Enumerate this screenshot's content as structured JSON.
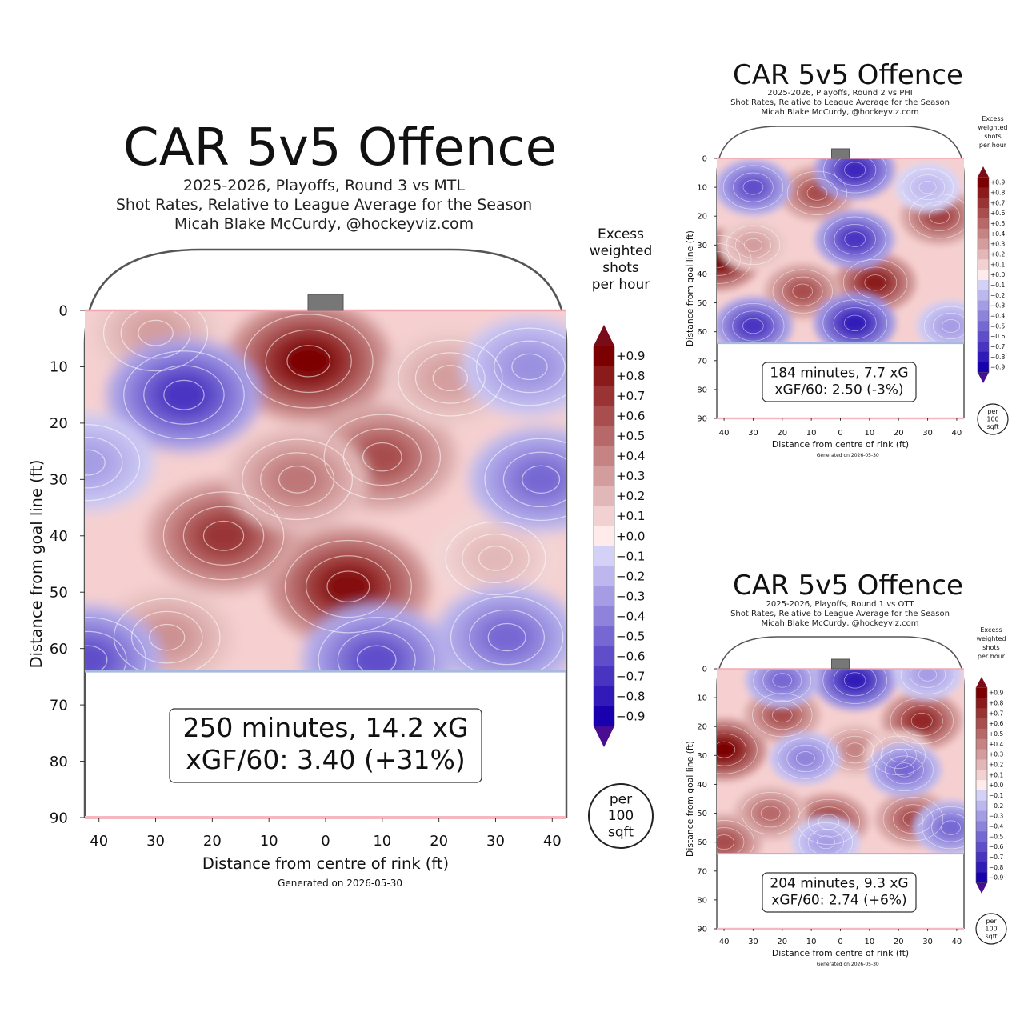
{
  "charts": [
    {
      "title": "CAR 5v5 Offence",
      "subtitle_lines": [
        "2025-2026, Playoffs, Round 3 vs MTL",
        "Shot Rates, Relative to League Average for the Season",
        "Micah Blake McCurdy, @hockeyviz.com"
      ],
      "summary_lines": [
        "250 minutes, 14.2 xG",
        "xGF/60: 3.40 (+31%)"
      ],
      "ylabel": "Distance from goal line (ft)",
      "xlabel": "Distance from centre of rink (ft)",
      "generated": "Generated on 2026-05-30",
      "legend_title": [
        "Excess",
        "weighted",
        "shots",
        "per hour"
      ],
      "unit_label": [
        "per",
        "100",
        "sqft"
      ]
    },
    {
      "title": "CAR 5v5 Offence",
      "subtitle_lines": [
        "2025-2026, Playoffs, Round 2 vs PHI",
        "Shot Rates, Relative to League Average for the Season",
        "Micah Blake McCurdy, @hockeyviz.com"
      ],
      "summary_lines": [
        "184 minutes, 7.7 xG",
        "xGF/60: 2.50 (-3%)"
      ],
      "ylabel": "Distance from goal line (ft)",
      "xlabel": "Distance from centre of rink (ft)",
      "generated": "Generated on 2026-05-30",
      "legend_title": [
        "Excess",
        "weighted",
        "shots",
        "per hour"
      ],
      "unit_label": [
        "per",
        "100",
        "sqft"
      ]
    },
    {
      "title": "CAR 5v5 Offence",
      "subtitle_lines": [
        "2025-2026, Playoffs, Round 1 vs OTT",
        "Shot Rates, Relative to League Average for the Season",
        "Micah Blake McCurdy, @hockeyviz.com"
      ],
      "summary_lines": [
        "204 minutes, 9.3 xG",
        "xGF/60: 2.74 (+6%)"
      ],
      "ylabel": "Distance from goal line (ft)",
      "xlabel": "Distance from centre of rink (ft)",
      "generated": "Generated on 2026-05-30",
      "legend_title": [
        "Excess",
        "weighted",
        "shots",
        "per hour"
      ],
      "unit_label": [
        "per",
        "100",
        "sqft"
      ]
    }
  ],
  "chart_data": [
    {
      "type": "heatmap",
      "x_ticks": [
        "40",
        "30",
        "20",
        "10",
        "0",
        "10",
        "20",
        "30",
        "40"
      ],
      "y_ticks": [
        "0",
        "10",
        "20",
        "30",
        "40",
        "50",
        "60",
        "70",
        "80",
        "90"
      ],
      "x_range": [
        -42.5,
        42.5
      ],
      "y_range": [
        0,
        90
      ],
      "colorbar_ticks": [
        "+0.9",
        "+0.8",
        "+0.7",
        "+0.6",
        "+0.5",
        "+0.4",
        "+0.3",
        "+0.2",
        "+0.1",
        "+0.0",
        "−0.1",
        "−0.2",
        "−0.3",
        "−0.4",
        "−0.5",
        "−0.6",
        "−0.7",
        "−0.8",
        "−0.9"
      ],
      "blobs": [
        {
          "x": -3,
          "y": 9,
          "value": 0.9
        },
        {
          "x": 10,
          "y": 26,
          "value": 0.6
        },
        {
          "x": 4,
          "y": 49,
          "value": 0.85
        },
        {
          "x": -18,
          "y": 40,
          "value": 0.7
        },
        {
          "x": -5,
          "y": 30,
          "value": 0.45
        },
        {
          "x": -30,
          "y": 4,
          "value": 0.3
        },
        {
          "x": -28,
          "y": 58,
          "value": 0.35
        },
        {
          "x": 30,
          "y": 44,
          "value": 0.2
        },
        {
          "x": 22,
          "y": 12,
          "value": 0.3
        },
        {
          "x": -25,
          "y": 15,
          "value": -0.7
        },
        {
          "x": 38,
          "y": 30,
          "value": -0.5
        },
        {
          "x": 32,
          "y": 58,
          "value": -0.5
        },
        {
          "x": -42,
          "y": 62,
          "value": -0.6
        },
        {
          "x": 9,
          "y": 62,
          "value": -0.6
        },
        {
          "x": -42,
          "y": 27,
          "value": -0.3
        },
        {
          "x": 36,
          "y": 10,
          "value": -0.35
        }
      ]
    },
    {
      "type": "heatmap",
      "x_ticks": [
        "40",
        "30",
        "20",
        "10",
        "0",
        "10",
        "20",
        "30",
        "40"
      ],
      "y_ticks": [
        "0",
        "10",
        "20",
        "30",
        "40",
        "50",
        "60",
        "70",
        "80",
        "90"
      ],
      "x_range": [
        -42.5,
        42.5
      ],
      "y_range": [
        0,
        90
      ],
      "colorbar_ticks": [
        "+0.9",
        "+0.8",
        "+0.7",
        "+0.6",
        "+0.5",
        "+0.4",
        "+0.3",
        "+0.2",
        "+0.1",
        "+0.0",
        "−0.1",
        "−0.2",
        "−0.3",
        "−0.4",
        "−0.5",
        "−0.6",
        "−0.7",
        "−0.8",
        "−0.9"
      ],
      "blobs": [
        {
          "x": -42,
          "y": 35,
          "value": 0.9
        },
        {
          "x": 12,
          "y": 43,
          "value": 0.8
        },
        {
          "x": -8,
          "y": 12,
          "value": 0.6
        },
        {
          "x": 34,
          "y": 20,
          "value": 0.65
        },
        {
          "x": -13,
          "y": 46,
          "value": 0.6
        },
        {
          "x": -30,
          "y": 30,
          "value": 0.3
        },
        {
          "x": 5,
          "y": 4,
          "value": -0.75
        },
        {
          "x": 5,
          "y": 28,
          "value": -0.7
        },
        {
          "x": -30,
          "y": 58,
          "value": -0.7
        },
        {
          "x": 5,
          "y": 57,
          "value": -0.8
        },
        {
          "x": -30,
          "y": 10,
          "value": -0.6
        },
        {
          "x": 30,
          "y": 10,
          "value": -0.2
        },
        {
          "x": 38,
          "y": 58,
          "value": -0.3
        }
      ]
    },
    {
      "type": "heatmap",
      "x_ticks": [
        "40",
        "30",
        "20",
        "10",
        "0",
        "10",
        "20",
        "30",
        "40"
      ],
      "y_ticks": [
        "0",
        "10",
        "20",
        "30",
        "40",
        "50",
        "60",
        "70",
        "80",
        "90"
      ],
      "x_range": [
        -42.5,
        42.5
      ],
      "y_range": [
        0,
        90
      ],
      "colorbar_ticks": [
        "+0.9",
        "+0.8",
        "+0.7",
        "+0.6",
        "+0.5",
        "+0.4",
        "+0.3",
        "+0.2",
        "+0.1",
        "+0.0",
        "−0.1",
        "−0.2",
        "−0.3",
        "−0.4",
        "−0.5",
        "−0.6",
        "−0.7",
        "−0.8",
        "−0.9"
      ],
      "blobs": [
        {
          "x": -40,
          "y": 28,
          "value": 0.9
        },
        {
          "x": -20,
          "y": 16,
          "value": 0.6
        },
        {
          "x": 28,
          "y": 18,
          "value": 0.75
        },
        {
          "x": -4,
          "y": 53,
          "value": 0.7
        },
        {
          "x": 25,
          "y": 52,
          "value": 0.6
        },
        {
          "x": -24,
          "y": 50,
          "value": 0.5
        },
        {
          "x": 5,
          "y": 28,
          "value": 0.4
        },
        {
          "x": 20,
          "y": 30,
          "value": 0.3
        },
        {
          "x": -40,
          "y": 60,
          "value": 0.6
        },
        {
          "x": 5,
          "y": 4,
          "value": -0.8
        },
        {
          "x": -20,
          "y": 4,
          "value": -0.5
        },
        {
          "x": -12,
          "y": 31,
          "value": -0.4
        },
        {
          "x": 22,
          "y": 35,
          "value": -0.5
        },
        {
          "x": 38,
          "y": 55,
          "value": -0.5
        },
        {
          "x": -5,
          "y": 60,
          "value": -0.3
        },
        {
          "x": 30,
          "y": 2,
          "value": -0.3
        }
      ]
    }
  ]
}
